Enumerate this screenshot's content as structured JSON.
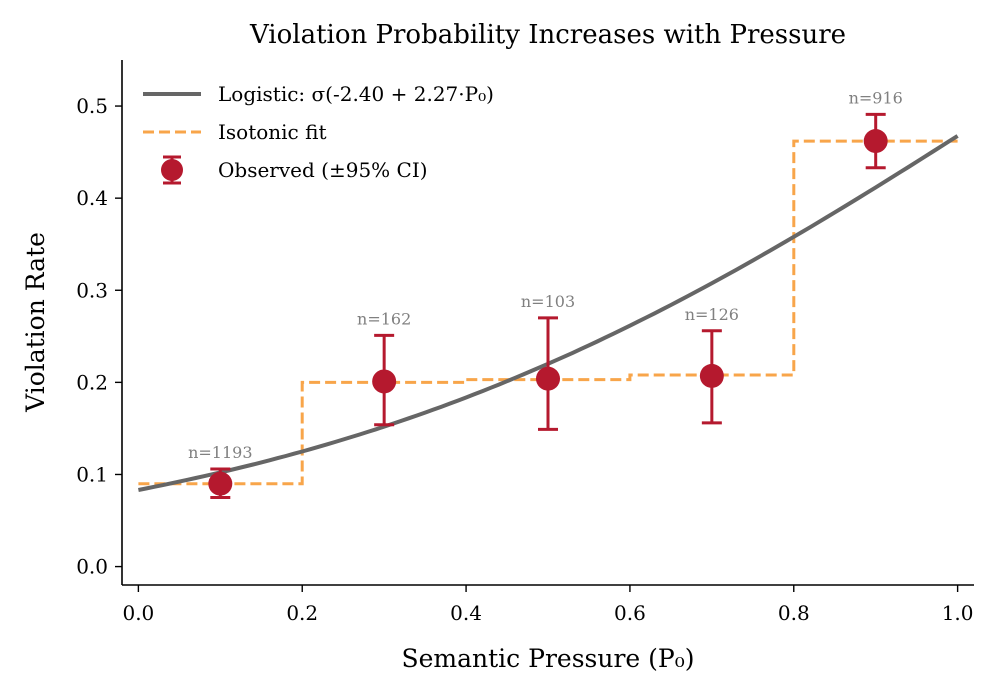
{
  "chart_data": {
    "type": "scatter",
    "title": "Violation Probability Increases with Pressure",
    "xlabel": "Semantic Pressure (P₀)",
    "ylabel": "Violation Rate",
    "xlim": [
      -0.02,
      1.02
    ],
    "ylim": [
      -0.02,
      0.55
    ],
    "xticks": [
      0.0,
      0.2,
      0.4,
      0.6,
      0.8,
      1.0
    ],
    "xtick_labels": [
      "0.0",
      "0.2",
      "0.4",
      "0.6",
      "0.8",
      "1.0"
    ],
    "yticks": [
      0.0,
      0.1,
      0.2,
      0.3,
      0.4,
      0.5
    ],
    "ytick_labels": [
      "0.0",
      "0.1",
      "0.2",
      "0.3",
      "0.4",
      "0.5"
    ],
    "legend_position": "top-left",
    "series": [
      {
        "name": "Logistic: σ(-2.40 + 2.27·P₀)",
        "kind": "logistic-curve",
        "intercept": -2.4,
        "slope": 2.27,
        "color": "#666666"
      },
      {
        "name": "Isotonic fit",
        "kind": "step",
        "x_edges": [
          0.0,
          0.2,
          0.2,
          0.4,
          0.4,
          0.6,
          0.6,
          0.8,
          0.8,
          1.0
        ],
        "values": [
          0.09,
          0.09,
          0.2,
          0.2,
          0.203,
          0.203,
          0.208,
          0.208,
          0.462,
          0.462
        ],
        "color": "#F8A54A"
      },
      {
        "name": "Observed (±95% CI)",
        "kind": "errorbar",
        "x": [
          0.1,
          0.3,
          0.5,
          0.7,
          0.9
        ],
        "y": [
          0.09,
          0.201,
          0.204,
          0.207,
          0.462
        ],
        "ci_low": [
          0.075,
          0.154,
          0.149,
          0.156,
          0.433
        ],
        "ci_high": [
          0.106,
          0.251,
          0.27,
          0.256,
          0.491
        ],
        "n_labels": [
          "n=1193",
          "n=162",
          "n=103",
          "n=126",
          "n=916"
        ],
        "color": "#B5192E"
      }
    ]
  }
}
